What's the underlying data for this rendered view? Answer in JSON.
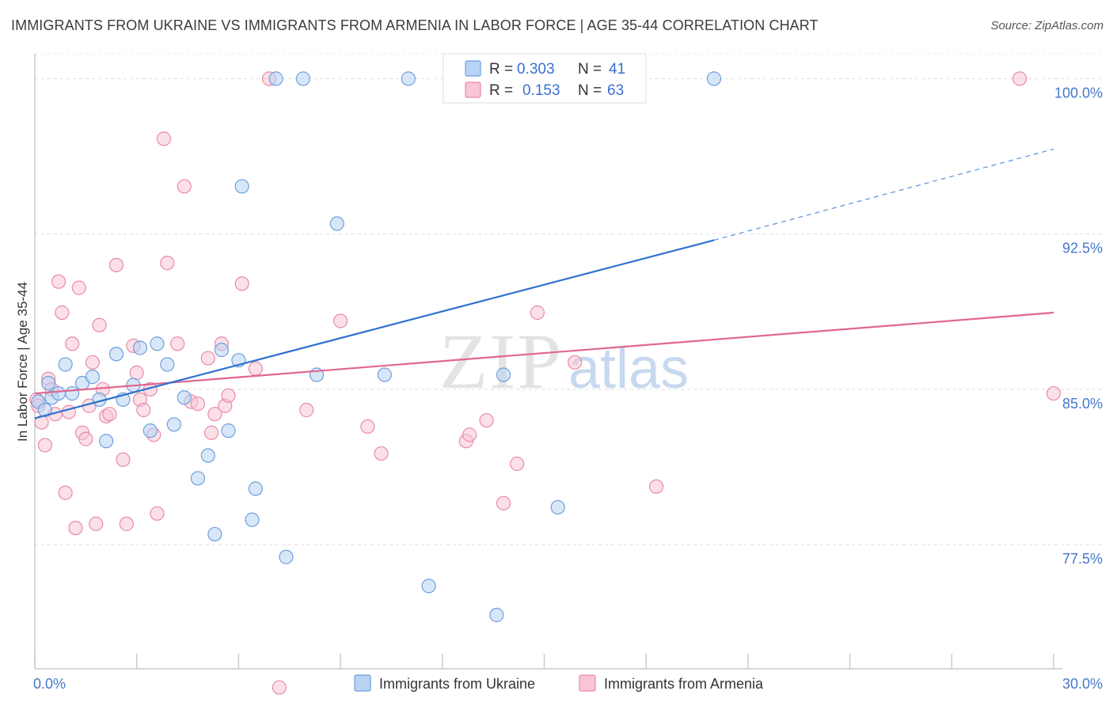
{
  "title": "IMMIGRANTS FROM UKRAINE VS IMMIGRANTS FROM ARMENIA IN LABOR FORCE | AGE 35-44 CORRELATION CHART",
  "source": "Source: ZipAtlas.com",
  "watermark": {
    "zip": "ZIP",
    "atlas": "atlas"
  },
  "legend": {
    "r_label": "R =",
    "n_label": "N =",
    "entries": [
      {
        "r": "0.303",
        "n": "41"
      },
      {
        "r": "0.153",
        "n": "63"
      }
    ]
  },
  "colors": {
    "ukraine_fill": "#b8d3f3",
    "ukraine_stroke": "#6f9fdc",
    "ukraine_line": "#2f72cf",
    "armenia_fill": "#f8c6d5",
    "armenia_stroke": "#e98aa8",
    "armenia_line": "#e0668e"
  },
  "chart_data": {
    "type": "scatter",
    "title": "IMMIGRANTS FROM UKRAINE VS IMMIGRANTS FROM ARMENIA IN LABOR FORCE | AGE 35-44 CORRELATION CHART",
    "xlabel": "",
    "ylabel": "In Labor Force | Age 35-44",
    "xlim": [
      0,
      30
    ],
    "ylim": [
      71.5,
      101.2
    ],
    "x_tick_labels": [
      "0.0%",
      "30.0%"
    ],
    "y_ticks": [
      77.5,
      85.0,
      92.5,
      100.0
    ],
    "y_tick_labels": [
      "77.5%",
      "85.0%",
      "92.5%",
      "100.0%"
    ],
    "grid": true,
    "legend_position": "top-center",
    "series": [
      {
        "name": "Immigrants from Ukraine",
        "r": 0.303,
        "n": 41,
        "trend": {
          "x0": 0,
          "y0": 83.6,
          "x1": 20.0,
          "y1": 92.2,
          "dashed_to_x": 30,
          "dashed_to_y": 96.6
        },
        "points": [
          [
            0.1,
            84.4
          ],
          [
            0.3,
            84.0
          ],
          [
            0.4,
            85.3
          ],
          [
            0.5,
            84.6
          ],
          [
            0.7,
            84.8
          ],
          [
            0.9,
            86.2
          ],
          [
            1.1,
            84.8
          ],
          [
            1.4,
            85.3
          ],
          [
            1.7,
            85.6
          ],
          [
            1.9,
            84.5
          ],
          [
            2.1,
            82.5
          ],
          [
            2.4,
            86.7
          ],
          [
            2.6,
            84.5
          ],
          [
            2.9,
            85.2
          ],
          [
            3.1,
            87.0
          ],
          [
            3.4,
            83.0
          ],
          [
            3.6,
            87.2
          ],
          [
            3.9,
            86.2
          ],
          [
            4.1,
            83.3
          ],
          [
            4.4,
            84.6
          ],
          [
            4.8,
            80.7
          ],
          [
            5.1,
            81.8
          ],
          [
            5.3,
            78.0
          ],
          [
            5.5,
            86.9
          ],
          [
            5.7,
            83.0
          ],
          [
            6.0,
            86.4
          ],
          [
            6.1,
            94.8
          ],
          [
            6.4,
            78.7
          ],
          [
            6.5,
            80.2
          ],
          [
            7.1,
            100.0
          ],
          [
            7.4,
            76.9
          ],
          [
            7.9,
            100.0
          ],
          [
            8.3,
            85.7
          ],
          [
            8.9,
            93.0
          ],
          [
            10.3,
            85.7
          ],
          [
            11.0,
            100.0
          ],
          [
            11.6,
            75.5
          ],
          [
            13.6,
            74.1
          ],
          [
            13.8,
            85.7
          ],
          [
            15.4,
            79.3
          ],
          [
            20.0,
            100.0
          ]
        ]
      },
      {
        "name": "Immigrants from Armenia",
        "r": 0.153,
        "n": 63,
        "trend": {
          "x0": 0,
          "y0": 84.8,
          "x1": 30,
          "y1": 88.7
        },
        "points": [
          [
            0.05,
            84.5
          ],
          [
            0.1,
            84.2
          ],
          [
            0.2,
            83.4
          ],
          [
            0.3,
            82.3
          ],
          [
            0.4,
            85.5
          ],
          [
            0.5,
            85.0
          ],
          [
            0.6,
            83.8
          ],
          [
            0.7,
            90.2
          ],
          [
            0.8,
            88.7
          ],
          [
            0.9,
            80.0
          ],
          [
            1.0,
            83.9
          ],
          [
            1.1,
            87.2
          ],
          [
            1.2,
            78.3
          ],
          [
            1.3,
            89.9
          ],
          [
            1.4,
            82.9
          ],
          [
            1.5,
            82.6
          ],
          [
            1.6,
            84.2
          ],
          [
            1.7,
            86.3
          ],
          [
            1.8,
            78.5
          ],
          [
            1.9,
            88.1
          ],
          [
            2.0,
            85.0
          ],
          [
            2.1,
            83.7
          ],
          [
            2.2,
            83.8
          ],
          [
            2.4,
            91.0
          ],
          [
            2.6,
            81.6
          ],
          [
            2.7,
            78.5
          ],
          [
            2.9,
            87.1
          ],
          [
            3.0,
            85.8
          ],
          [
            3.1,
            84.5
          ],
          [
            3.2,
            84.0
          ],
          [
            3.4,
            85.0
          ],
          [
            3.5,
            82.8
          ],
          [
            3.6,
            79.0
          ],
          [
            3.8,
            97.1
          ],
          [
            3.9,
            91.1
          ],
          [
            4.2,
            87.2
          ],
          [
            4.4,
            94.8
          ],
          [
            4.6,
            84.4
          ],
          [
            4.8,
            84.3
          ],
          [
            5.1,
            86.5
          ],
          [
            5.2,
            82.9
          ],
          [
            5.3,
            83.8
          ],
          [
            5.5,
            87.2
          ],
          [
            5.6,
            84.2
          ],
          [
            5.7,
            84.7
          ],
          [
            6.1,
            90.1
          ],
          [
            6.5,
            86.0
          ],
          [
            6.9,
            100.0
          ],
          [
            7.2,
            70.6
          ],
          [
            8.0,
            84.0
          ],
          [
            9.0,
            88.3
          ],
          [
            9.8,
            83.2
          ],
          [
            10.2,
            81.9
          ],
          [
            12.7,
            82.5
          ],
          [
            12.8,
            82.8
          ],
          [
            13.3,
            83.5
          ],
          [
            13.8,
            79.5
          ],
          [
            14.2,
            81.4
          ],
          [
            14.8,
            88.7
          ],
          [
            15.9,
            86.3
          ],
          [
            18.3,
            80.3
          ],
          [
            29.0,
            100.0
          ],
          [
            30.0,
            84.8
          ]
        ]
      }
    ]
  }
}
